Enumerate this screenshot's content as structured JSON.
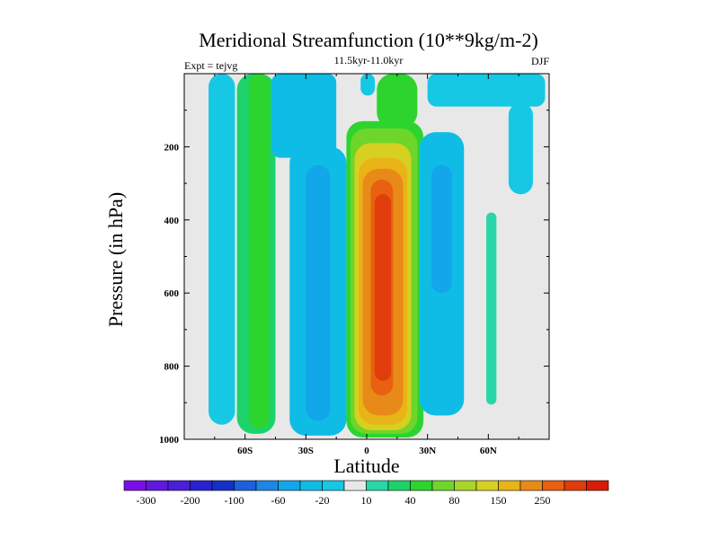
{
  "chart_data": {
    "type": "contour",
    "title": "Meridional Streamfunction (10**9kg/m-2)",
    "experiment_label": "Expt = tejvg",
    "period_label": "11.5kyr-11.0kyr",
    "season_label": "DJF",
    "xlabel": "Latitude",
    "ylabel": "Pressure (in hPa)",
    "xlim": [
      -90,
      90
    ],
    "ylim": [
      1000,
      0
    ],
    "x_ticks": [
      {
        "value": -60,
        "label": "60S"
      },
      {
        "value": -30,
        "label": "30S"
      },
      {
        "value": 0,
        "label": "0"
      },
      {
        "value": 30,
        "label": "30N"
      },
      {
        "value": 60,
        "label": "60N"
      }
    ],
    "y_ticks": [
      {
        "value": 200,
        "label": "200"
      },
      {
        "value": 400,
        "label": "400"
      },
      {
        "value": 600,
        "label": "600"
      },
      {
        "value": 800,
        "label": "800"
      },
      {
        "value": 1000,
        "label": "1000"
      }
    ],
    "colorbar": {
      "colors": [
        "#7a10e8",
        "#6018e0",
        "#4b1ed8",
        "#2a22d0",
        "#1530c8",
        "#1e60dc",
        "#1e86e6",
        "#12a6ea",
        "#0fbce6",
        "#16c8e4",
        "#e8e8e8",
        "#28d6a8",
        "#1ed26a",
        "#2ed42e",
        "#6ed62a",
        "#a8d628",
        "#d6d020",
        "#e8b418",
        "#e88a18",
        "#e86010",
        "#e03c0c",
        "#d81c06"
      ],
      "labels": [
        {
          "after": 1,
          "label": "-300"
        },
        {
          "after": 3,
          "label": "-200"
        },
        {
          "after": 5,
          "label": "-100"
        },
        {
          "after": 7,
          "label": "-60"
        },
        {
          "after": 9,
          "label": "-20"
        },
        {
          "after": 11,
          "label": "10"
        },
        {
          "after": 13,
          "label": "40"
        },
        {
          "after": 15,
          "label": "80"
        },
        {
          "after": 17,
          "label": "150"
        },
        {
          "after": 19,
          "label": "250"
        }
      ]
    },
    "background_color": "#e8e8e8",
    "regions": [
      {
        "name": "south-polar-blue-cell",
        "color": "#16c8e4",
        "lat": [
          -78,
          -65
        ],
        "p": [
          0,
          960
        ],
        "shape": "column"
      },
      {
        "name": "south-midlat-green-cell",
        "color": "#1ed26a",
        "lat": [
          -64,
          -45
        ],
        "p": [
          0,
          985
        ],
        "shape": "column"
      },
      {
        "name": "south-midlat-green-core",
        "color": "#2ed42e",
        "lat": [
          -58,
          -48
        ],
        "p": [
          0,
          970
        ],
        "shape": "column"
      },
      {
        "name": "south-upper-blue-cell",
        "color": "#0fbce6",
        "lat": [
          -47,
          -15
        ],
        "p": [
          0,
          230
        ],
        "shape": "slab"
      },
      {
        "name": "south-subtropic-blue-cell",
        "color": "#0fbce6",
        "lat": [
          -38,
          -10
        ],
        "p": [
          200,
          990
        ],
        "shape": "column"
      },
      {
        "name": "south-subtropic-blue-core",
        "color": "#12a6ea",
        "lat": [
          -30,
          -18
        ],
        "p": [
          250,
          950
        ],
        "shape": "column"
      },
      {
        "name": "hadley-10",
        "color": "#2ed42e",
        "lat": [
          -10,
          28
        ],
        "p": [
          130,
          995
        ],
        "shape": "column"
      },
      {
        "name": "hadley-40",
        "color": "#6ed62a",
        "lat": [
          -8,
          25
        ],
        "p": [
          150,
          985
        ],
        "shape": "column"
      },
      {
        "name": "hadley-80",
        "color": "#d6d020",
        "lat": [
          -6,
          22
        ],
        "p": [
          190,
          975
        ],
        "shape": "column"
      },
      {
        "name": "hadley-150",
        "color": "#e8b418",
        "lat": [
          -4,
          20
        ],
        "p": [
          230,
          960
        ],
        "shape": "column"
      },
      {
        "name": "hadley-200",
        "color": "#e88a18",
        "lat": [
          -2,
          18
        ],
        "p": [
          260,
          935
        ],
        "shape": "column"
      },
      {
        "name": "hadley-250",
        "color": "#e86010",
        "lat": [
          2,
          13
        ],
        "p": [
          290,
          880
        ],
        "shape": "column"
      },
      {
        "name": "hadley-core",
        "color": "#e03c0c",
        "lat": [
          4,
          12
        ],
        "p": [
          330,
          840
        ],
        "shape": "column"
      },
      {
        "name": "upper-green-tongue",
        "color": "#2ed42e",
        "lat": [
          5,
          25
        ],
        "p": [
          0,
          150
        ],
        "shape": "column"
      },
      {
        "name": "north-blue-cell",
        "color": "#0fbce6",
        "lat": [
          26,
          48
        ],
        "p": [
          160,
          935
        ],
        "shape": "column"
      },
      {
        "name": "north-blue-core",
        "color": "#12a6ea",
        "lat": [
          32,
          42
        ],
        "p": [
          250,
          600
        ],
        "shape": "column"
      },
      {
        "name": "north-teal-strip",
        "color": "#28d6a8",
        "lat": [
          59,
          64
        ],
        "p": [
          380,
          905
        ],
        "shape": "column"
      },
      {
        "name": "north-upper-blue",
        "color": "#16c8e4",
        "lat": [
          30,
          88
        ],
        "p": [
          0,
          90
        ],
        "shape": "slab"
      },
      {
        "name": "north-polar-blue",
        "color": "#16c8e4",
        "lat": [
          70,
          82
        ],
        "p": [
          80,
          330
        ],
        "shape": "column"
      },
      {
        "name": "equator-top-blue",
        "color": "#16c8e4",
        "lat": [
          -3,
          4
        ],
        "p": [
          0,
          60
        ],
        "shape": "column"
      }
    ]
  }
}
